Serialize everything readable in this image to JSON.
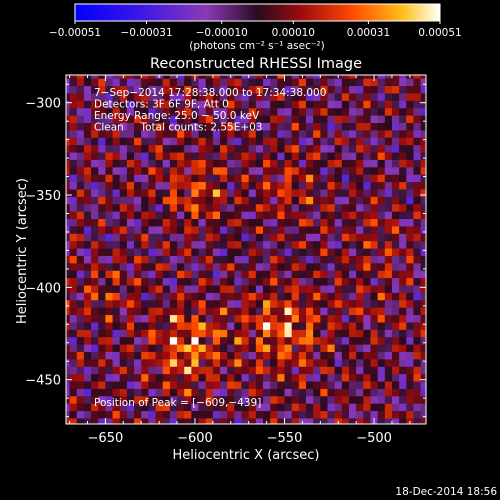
{
  "chart_data": {
    "type": "heatmap",
    "title": "Reconstructed RHESSI Image",
    "xlabel": "Heliocentric X (arcsec)",
    "ylabel": "Heliocentric Y (arcsec)",
    "xlim": [
      -672,
      -471
    ],
    "ylim": [
      -474,
      -285
    ],
    "x_ticks": [
      -650,
      -600,
      -550,
      -500
    ],
    "y_ticks": [
      -300,
      -350,
      -400,
      -450
    ],
    "x_tick_labels": [
      "−650",
      "−600",
      "−550",
      "−500"
    ],
    "y_tick_labels": [
      "−300",
      "−350",
      "−400",
      "−450"
    ],
    "colorbar": {
      "min": -0.00051,
      "max": 0.00051,
      "tick_values": [
        -0.00051,
        -0.00031,
        -0.0001,
        0.0001,
        0.00031,
        0.00051
      ],
      "tick_labels": [
        "−0.00051",
        "−0.00031",
        "−0.00010",
        "0.00010",
        "0.00031",
        "0.00051"
      ],
      "units_label": "(photons cm⁻² s⁻¹ asec⁻²)"
    },
    "annotations": [
      "7−Sep−2014 17:28:38.000 to 17:34:38.000",
      "Detectors: 3F 6F 9F, Att 0",
      "Energy Range: 25.0 − 50.0 keV",
      "Clean     Total counts: 2.55E+03"
    ],
    "peak_label": "Position of Peak = [−609,−439]",
    "peak_position": [
      -609,
      -439
    ],
    "sources": [
      {
        "x": -604,
        "y": -432,
        "sigma": 14,
        "amplitude": 0.00051
      },
      {
        "x": -550,
        "y": -423,
        "sigma": 15,
        "amplitude": 0.00046
      },
      {
        "x": -600,
        "y": -347,
        "sigma": 13,
        "amplitude": 0.0003
      },
      {
        "x": -548,
        "y": -347,
        "sigma": 12,
        "amplitude": 0.00026
      },
      {
        "x": -650,
        "y": -405,
        "sigma": 11,
        "amplitude": 0.00022
      },
      {
        "x": -500,
        "y": -375,
        "sigma": 11,
        "amplitude": 0.00018
      },
      {
        "x": -505,
        "y": -410,
        "sigma": 10,
        "amplitude": 0.00015
      }
    ]
  },
  "footer": {
    "timestamp": "18-Dec-2014 18:56"
  }
}
